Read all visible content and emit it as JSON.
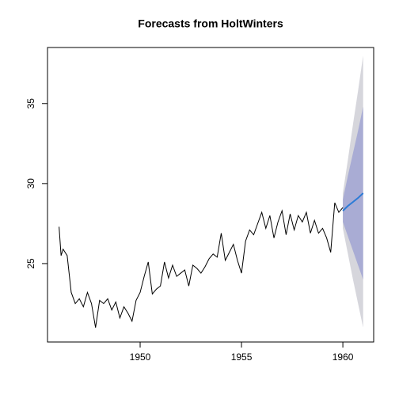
{
  "chart_data": {
    "type": "line",
    "title": "Forecasts from HoltWinters",
    "xlim": [
      1945.43,
      1961.52
    ],
    "ylim": [
      20.1,
      38.5
    ],
    "xticks": [
      1950,
      1955,
      1960
    ],
    "yticks": [
      25,
      30,
      35
    ],
    "x": [
      1946.0,
      1946.1,
      1946.2,
      1946.4,
      1946.6,
      1946.8,
      1947.0,
      1947.2,
      1947.4,
      1947.6,
      1947.8,
      1948.0,
      1948.2,
      1948.4,
      1948.6,
      1948.8,
      1949.0,
      1949.2,
      1949.4,
      1949.6,
      1949.8,
      1950.0,
      1950.2,
      1950.4,
      1950.6,
      1950.8,
      1951.0,
      1951.2,
      1951.4,
      1951.6,
      1951.8,
      1952.0,
      1952.2,
      1952.4,
      1952.6,
      1952.8,
      1953.0,
      1953.2,
      1953.4,
      1953.6,
      1953.8,
      1954.0,
      1954.2,
      1954.4,
      1954.6,
      1954.8,
      1955.0,
      1955.2,
      1955.4,
      1955.6,
      1955.8,
      1956.0,
      1956.2,
      1956.4,
      1956.6,
      1956.8,
      1957.0,
      1957.2,
      1957.4,
      1957.6,
      1957.8,
      1958.0,
      1958.2,
      1958.4,
      1958.6,
      1958.8,
      1959.0,
      1959.2,
      1959.4,
      1959.6,
      1959.8,
      1960.0
    ],
    "series": [
      {
        "color": "#000000",
        "values": [
          27.3,
          25.5,
          25.9,
          25.5,
          23.2,
          22.5,
          22.8,
          22.3,
          23.2,
          22.5,
          21.0,
          22.7,
          22.5,
          22.8,
          22.1,
          22.6,
          21.6,
          22.3,
          21.9,
          21.4,
          22.7,
          23.2,
          24.2,
          25.1,
          23.1,
          23.4,
          23.6,
          25.1,
          24.1,
          24.9,
          24.2,
          24.4,
          24.6,
          23.6,
          24.9,
          24.7,
          24.4,
          24.8,
          25.3,
          25.6,
          25.4,
          26.9,
          25.2,
          25.7,
          26.2,
          25.2,
          24.4,
          26.4,
          27.1,
          26.8,
          27.5,
          28.2,
          27.2,
          28.0,
          26.6,
          27.6,
          28.3,
          26.8,
          28.1,
          27.1,
          28.0,
          27.6,
          28.2,
          26.9,
          27.7,
          26.9,
          27.2,
          26.6,
          25.7,
          28.8,
          28.2,
          28.5
        ]
      }
    ],
    "forecast": {
      "x": [
        1960.0,
        1960.25,
        1960.5,
        1960.75,
        1961.0
      ],
      "color": "#2b7bd6",
      "values": [
        28.3,
        28.6,
        28.85,
        29.1,
        29.4
      ],
      "intervals": [
        {
          "color": "#d6d6dc",
          "lower": [
            27.2,
            25.6,
            24.0,
            22.5,
            21.0
          ],
          "upper": [
            29.4,
            31.5,
            33.7,
            35.8,
            38.0
          ]
        },
        {
          "color": "#a9acd4",
          "lower": [
            27.6,
            26.7,
            25.8,
            24.9,
            24.0
          ],
          "upper": [
            29.0,
            30.5,
            31.9,
            33.3,
            34.8
          ]
        }
      ]
    }
  }
}
